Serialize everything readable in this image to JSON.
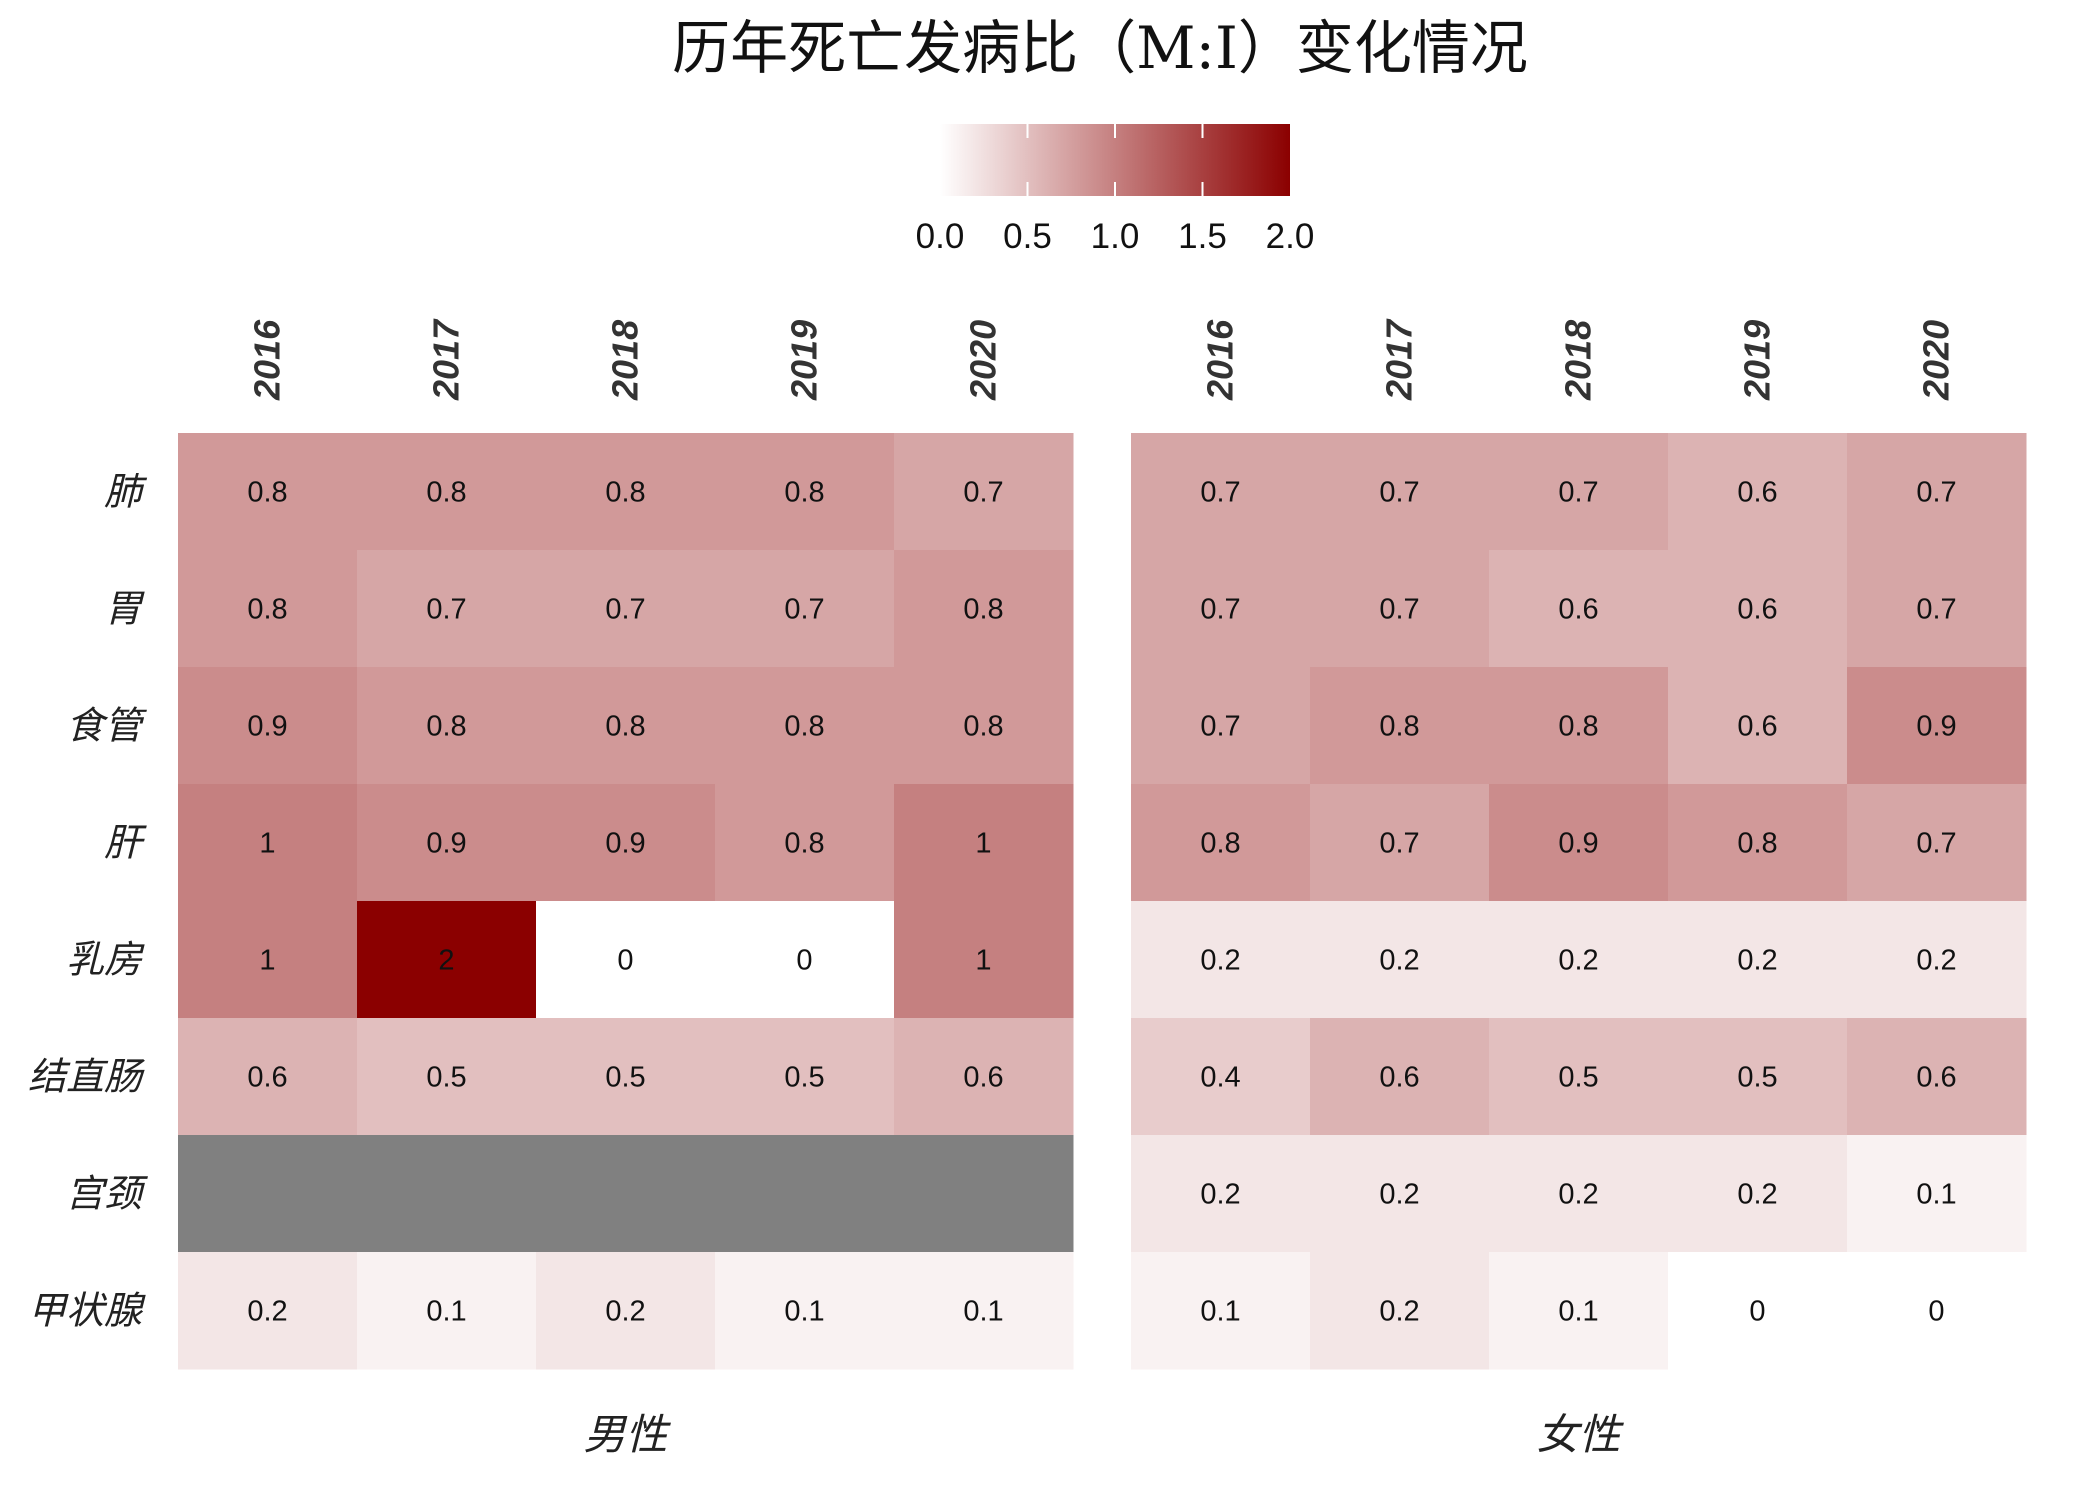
{
  "chart_data": {
    "type": "heatmap",
    "title": "历年死亡发病比（M:I）变化情况",
    "legend": {
      "min": 0,
      "max": 2,
      "ticks": [
        "0.0",
        "0.5",
        "1.0",
        "1.5",
        "2.0"
      ],
      "color_low": "#ffffff",
      "color_high": "#8b0000",
      "placement": "top"
    },
    "na_color": "#808080",
    "rows": [
      "肺",
      "胃",
      "食管",
      "肝",
      "乳房",
      "结直肠",
      "宫颈",
      "甲状腺"
    ],
    "columns": [
      "2016",
      "2017",
      "2018",
      "2019",
      "2020"
    ],
    "panels": [
      {
        "name": "男性",
        "values": [
          [
            0.8,
            0.8,
            0.8,
            0.8,
            0.7
          ],
          [
            0.8,
            0.7,
            0.7,
            0.7,
            0.8
          ],
          [
            0.9,
            0.8,
            0.8,
            0.8,
            0.8
          ],
          [
            1,
            0.9,
            0.9,
            0.8,
            1
          ],
          [
            1,
            2,
            0,
            0,
            1
          ],
          [
            0.6,
            0.5,
            0.5,
            0.5,
            0.6
          ],
          [
            null,
            null,
            null,
            null,
            null
          ],
          [
            0.2,
            0.1,
            0.2,
            0.1,
            0.1
          ]
        ]
      },
      {
        "name": "女性",
        "values": [
          [
            0.7,
            0.7,
            0.7,
            0.6,
            0.7
          ],
          [
            0.7,
            0.7,
            0.6,
            0.6,
            0.7
          ],
          [
            0.7,
            0.8,
            0.8,
            0.6,
            0.9
          ],
          [
            0.8,
            0.7,
            0.9,
            0.8,
            0.7
          ],
          [
            0.2,
            0.2,
            0.2,
            0.2,
            0.2
          ],
          [
            0.4,
            0.6,
            0.5,
            0.5,
            0.6
          ],
          [
            0.2,
            0.2,
            0.2,
            0.2,
            0.1
          ],
          [
            0.1,
            0.2,
            0.1,
            0,
            0
          ]
        ]
      }
    ]
  }
}
